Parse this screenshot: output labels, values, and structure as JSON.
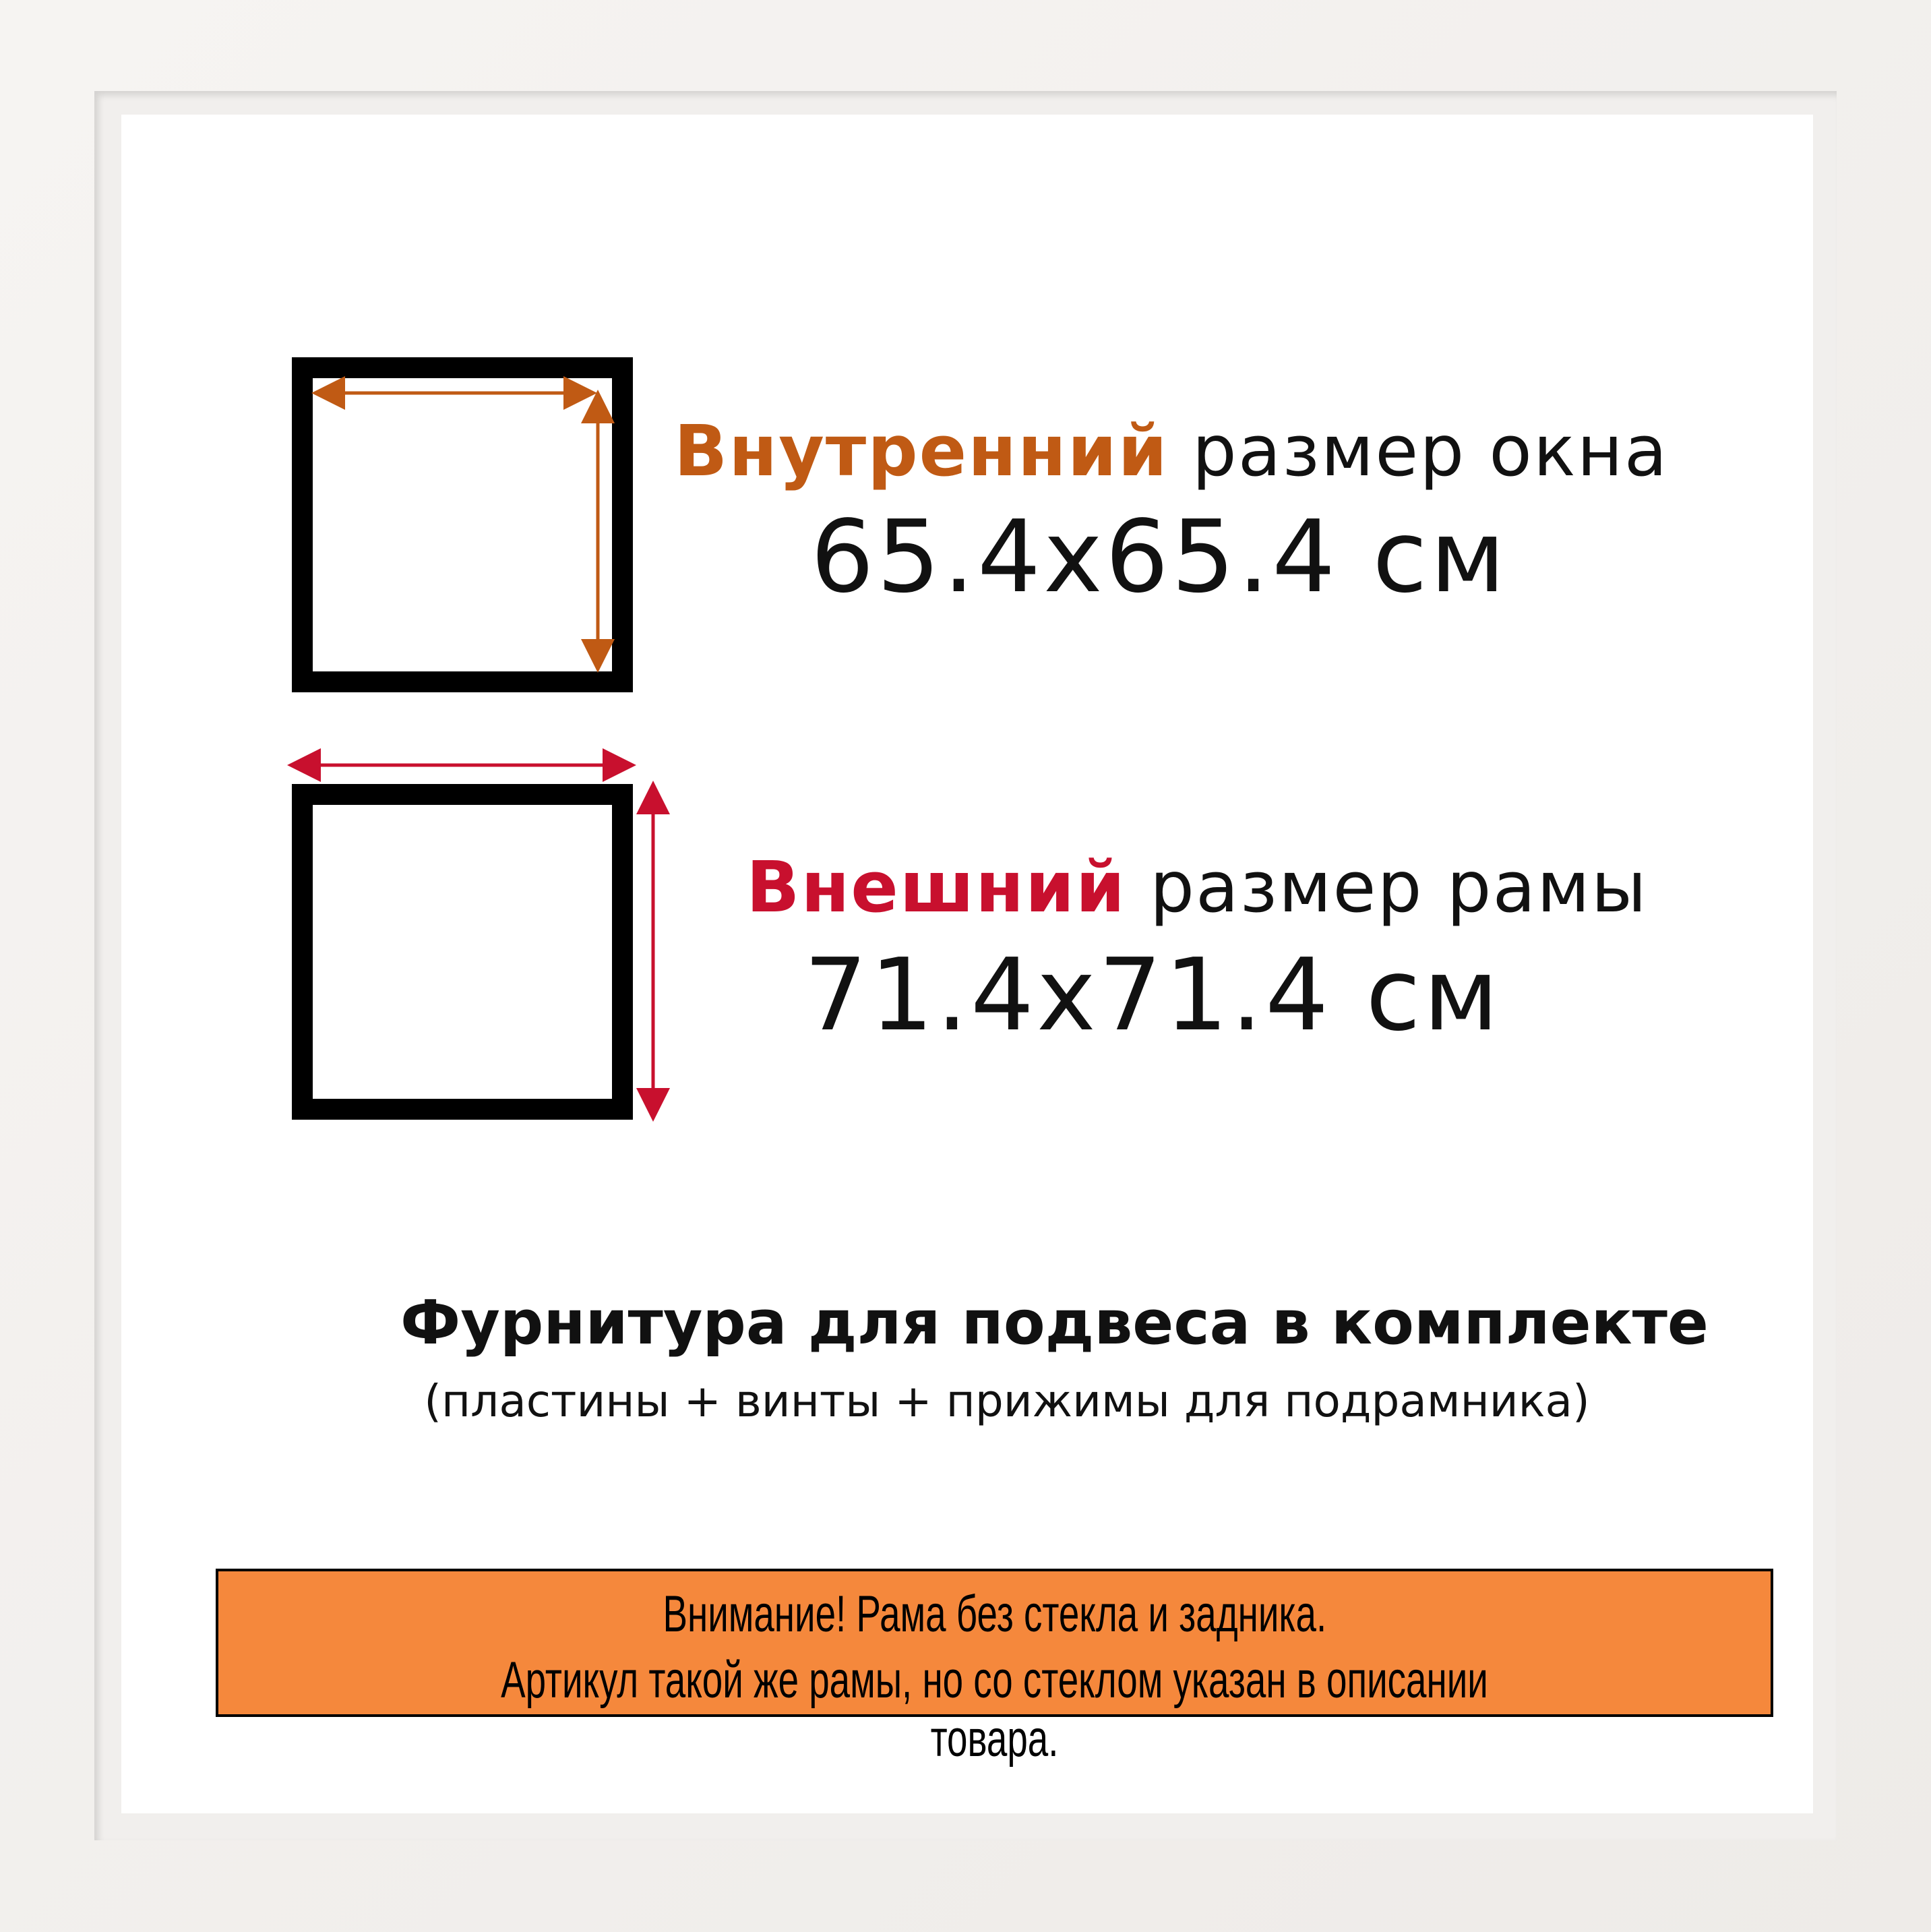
{
  "inner": {
    "highlight": "Внутренний",
    "rest": " размер окна",
    "value": "65.4x65.4 см",
    "color": "#c05a14"
  },
  "outer": {
    "highlight": "Внешний",
    "rest": " размер рамы",
    "value": "71.4x71.4 см",
    "color": "#c8102e"
  },
  "hardware": {
    "title": "Фурнитура для подвеса в комплекте",
    "subtitle": "(пластины + винты + прижимы для подрамника)"
  },
  "notice": {
    "line1": "Внимание! Рама без стекла и задника.",
    "line2": "Артикул такой же рамы, но со стеклом указан в описании товара.",
    "background": "#f5883c"
  }
}
